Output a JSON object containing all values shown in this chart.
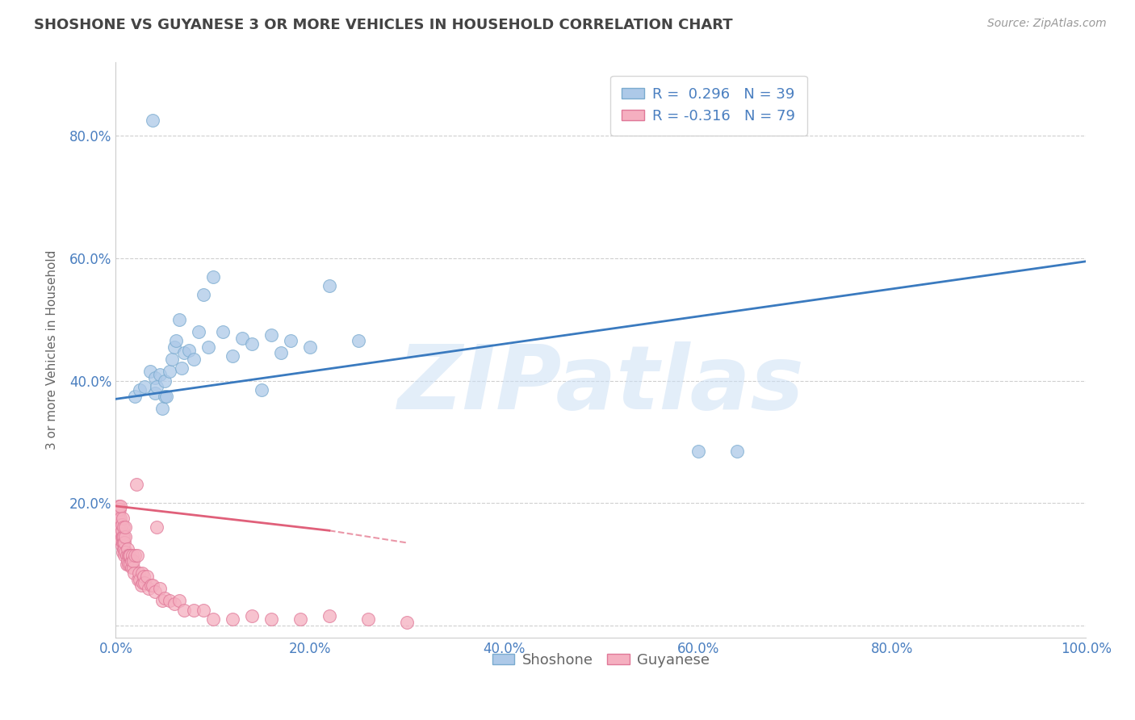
{
  "title": "SHOSHONE VS GUYANESE 3 OR MORE VEHICLES IN HOUSEHOLD CORRELATION CHART",
  "source": "Source: ZipAtlas.com",
  "ylabel": "3 or more Vehicles in Household",
  "xlabel": "",
  "xlim": [
    0.0,
    1.0
  ],
  "ylim": [
    -0.02,
    0.92
  ],
  "xticks": [
    0.0,
    0.2,
    0.4,
    0.6,
    0.8,
    1.0
  ],
  "xticklabels": [
    "0.0%",
    "20.0%",
    "40.0%",
    "60.0%",
    "80.0%",
    "100.0%"
  ],
  "yticks": [
    0.0,
    0.2,
    0.4,
    0.6,
    0.8
  ],
  "yticklabels": [
    "",
    "20.0%",
    "40.0%",
    "60.0%",
    "80.0%"
  ],
  "legend_entries": [
    {
      "label": "R =  0.296   N = 39"
    },
    {
      "label": "R = -0.316   N = 79"
    }
  ],
  "shoshone_color": "#adc9e8",
  "shoshone_edge": "#7aabcf",
  "guyanese_color": "#f5afc0",
  "guyanese_edge": "#e07898",
  "trend_shoshone_color": "#3a7abf",
  "trend_guyanese_color": "#e0607a",
  "watermark": "ZIPatlas",
  "watermark_color": "#cce0f5",
  "background_color": "#ffffff",
  "grid_color": "#bbbbbb",
  "title_color": "#444444",
  "axis_color": "#4a7fc0",
  "shoshone_x": [
    0.02,
    0.025,
    0.03,
    0.035,
    0.04,
    0.04,
    0.042,
    0.045,
    0.048,
    0.05,
    0.05,
    0.052,
    0.055,
    0.058,
    0.06,
    0.062,
    0.065,
    0.068,
    0.07,
    0.075,
    0.08,
    0.085,
    0.09,
    0.095,
    0.1,
    0.11,
    0.12,
    0.13,
    0.14,
    0.15,
    0.16,
    0.17,
    0.18,
    0.2,
    0.22,
    0.25,
    0.6,
    0.64,
    0.038
  ],
  "shoshone_y": [
    0.375,
    0.385,
    0.39,
    0.415,
    0.38,
    0.405,
    0.39,
    0.41,
    0.355,
    0.375,
    0.4,
    0.375,
    0.415,
    0.435,
    0.455,
    0.465,
    0.5,
    0.42,
    0.445,
    0.45,
    0.435,
    0.48,
    0.54,
    0.455,
    0.57,
    0.48,
    0.44,
    0.47,
    0.46,
    0.385,
    0.475,
    0.445,
    0.465,
    0.455,
    0.555,
    0.465,
    0.285,
    0.285,
    0.825
  ],
  "guyanese_x": [
    0.003,
    0.003,
    0.003,
    0.004,
    0.004,
    0.004,
    0.004,
    0.005,
    0.005,
    0.005,
    0.005,
    0.005,
    0.006,
    0.006,
    0.006,
    0.006,
    0.007,
    0.007,
    0.007,
    0.007,
    0.008,
    0.008,
    0.008,
    0.008,
    0.009,
    0.009,
    0.009,
    0.01,
    0.01,
    0.01,
    0.011,
    0.011,
    0.012,
    0.012,
    0.013,
    0.013,
    0.014,
    0.015,
    0.015,
    0.016,
    0.016,
    0.017,
    0.018,
    0.018,
    0.019,
    0.02,
    0.021,
    0.022,
    0.023,
    0.024,
    0.025,
    0.026,
    0.027,
    0.028,
    0.029,
    0.03,
    0.032,
    0.034,
    0.036,
    0.038,
    0.04,
    0.042,
    0.045,
    0.048,
    0.05,
    0.055,
    0.06,
    0.065,
    0.07,
    0.08,
    0.09,
    0.1,
    0.12,
    0.14,
    0.16,
    0.19,
    0.22,
    0.26,
    0.3
  ],
  "guyanese_y": [
    0.185,
    0.175,
    0.195,
    0.165,
    0.155,
    0.145,
    0.19,
    0.16,
    0.15,
    0.175,
    0.14,
    0.195,
    0.13,
    0.145,
    0.155,
    0.165,
    0.12,
    0.135,
    0.145,
    0.175,
    0.125,
    0.135,
    0.145,
    0.16,
    0.115,
    0.125,
    0.135,
    0.12,
    0.145,
    0.16,
    0.1,
    0.115,
    0.105,
    0.125,
    0.1,
    0.115,
    0.115,
    0.1,
    0.115,
    0.095,
    0.105,
    0.115,
    0.095,
    0.105,
    0.085,
    0.115,
    0.23,
    0.115,
    0.075,
    0.085,
    0.075,
    0.065,
    0.085,
    0.07,
    0.08,
    0.07,
    0.08,
    0.06,
    0.065,
    0.065,
    0.055,
    0.16,
    0.06,
    0.04,
    0.045,
    0.04,
    0.035,
    0.04,
    0.025,
    0.025,
    0.025,
    0.01,
    0.01,
    0.015,
    0.01,
    0.01,
    0.015,
    0.01,
    0.005
  ],
  "trend_sh_x0": 0.0,
  "trend_sh_x1": 1.0,
  "trend_sh_y0": 0.37,
  "trend_sh_y1": 0.595,
  "trend_gy_x0": 0.0,
  "trend_gy_x1": 0.22,
  "trend_gy_x1_dash": 0.3,
  "trend_gy_y0": 0.195,
  "trend_gy_y1": 0.155,
  "trend_gy_y1_dash": 0.135
}
